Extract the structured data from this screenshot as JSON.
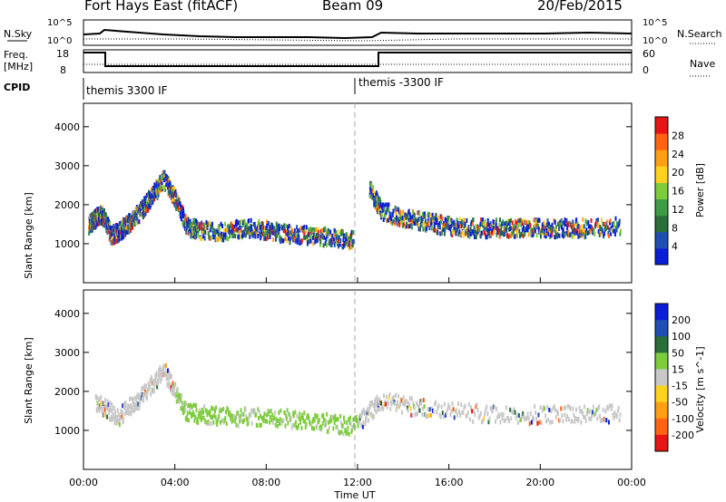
{
  "header": {
    "station": "Fort Hays East (fitACF)",
    "beam": "Beam 09",
    "date": "20/Feb/2015"
  },
  "aux_panels": {
    "nsky_label": "N.Sky",
    "nsky_ticks": [
      "10^5",
      "10^0"
    ],
    "nsearch_label": "N.Search",
    "nsearch_ticks": [
      "10^5",
      "10^0"
    ],
    "freq_label": "Freq.",
    "freq_unit": "[MHz]",
    "freq_ticks": [
      "18",
      "8"
    ],
    "nave_label": "Nave",
    "nave_ticks": [
      "60",
      "0"
    ],
    "cpid_label": "CPID",
    "cpid_segments": [
      {
        "label": "themis 3300 IF",
        "start": 0,
        "end": 12
      },
      {
        "label": "themis -3300 IF",
        "start": 12,
        "end": 24
      }
    ]
  },
  "chart_data": [
    {
      "type": "heatmap",
      "title": "",
      "xlabel": "Time UT",
      "ylabel": "Slant Range [km]",
      "x_ticks": [
        "00:00",
        "04:00",
        "08:00",
        "12:00",
        "16:00",
        "20:00",
        "00:00"
      ],
      "xlim": [
        0,
        24
      ],
      "ylim": [
        0,
        4600
      ],
      "y_ticks": [
        1000,
        2000,
        3000,
        4000
      ],
      "colorbar": {
        "label": "Power [dB]",
        "ticks": [
          4,
          8,
          12,
          16,
          20,
          24,
          28
        ],
        "range": [
          0,
          32
        ],
        "colors": [
          "#0a1ed8",
          "#1e50b4",
          "#2a6e3a",
          "#3c9c46",
          "#7ccc3c",
          "#ffd21e",
          "#ffa014",
          "#ff6414",
          "#e61414"
        ]
      },
      "series": [
        {
          "name": "",
          "points": [
            [
              0.2,
              1550
            ],
            [
              0.5,
              1700
            ],
            [
              0.8,
              1800
            ],
            [
              1.2,
              1250
            ],
            [
              1.6,
              1400
            ],
            [
              2.0,
              1600
            ],
            [
              2.5,
              1900
            ],
            [
              3.0,
              2300
            ],
            [
              3.5,
              2700
            ],
            [
              4.0,
              2200
            ],
            [
              4.5,
              1500
            ],
            [
              5.0,
              1400
            ],
            [
              6.0,
              1350
            ],
            [
              7.0,
              1450
            ],
            [
              8.0,
              1400
            ],
            [
              9.0,
              1300
            ],
            [
              10.0,
              1250
            ],
            [
              11.0,
              1200
            ],
            [
              11.8,
              1150
            ]
          ]
        },
        {
          "name": "",
          "points": [
            [
              12.5,
              2500
            ],
            [
              13.0,
              1900
            ],
            [
              14.0,
              1700
            ],
            [
              15.0,
              1600
            ],
            [
              16.0,
              1500
            ],
            [
              17.0,
              1450
            ],
            [
              18.0,
              1450
            ],
            [
              19.0,
              1450
            ],
            [
              20.0,
              1450
            ],
            [
              21.0,
              1450
            ],
            [
              22.0,
              1450
            ],
            [
              23.5,
              1500
            ]
          ]
        }
      ]
    },
    {
      "type": "heatmap",
      "title": "",
      "xlabel": "Time UT",
      "ylabel": "Slant Range [km]",
      "x_ticks": [
        "00:00",
        "04:00",
        "08:00",
        "12:00",
        "16:00",
        "20:00",
        "00:00"
      ],
      "xlim": [
        0,
        24
      ],
      "ylim": [
        0,
        4600
      ],
      "y_ticks": [
        1000,
        2000,
        3000,
        4000
      ],
      "colorbar": {
        "label": "Velocity [m s^-1]",
        "ticks": [
          "200",
          "100",
          "50",
          "15",
          "-15",
          "-50",
          "-100",
          "-200"
        ],
        "range": [
          -250,
          250
        ],
        "colors": [
          "#0a1ed8",
          "#1e50b4",
          "#2a6e3a",
          "#7ccc3c",
          "#c8c8c8",
          "#ffd21e",
          "#ffa014",
          "#ff6414",
          "#e61414"
        ]
      },
      "series": [
        {
          "name": "",
          "points": [
            [
              0.5,
              1800
            ],
            [
              1.5,
              1400
            ],
            [
              2.5,
              1900
            ],
            [
              3.5,
              2600
            ],
            [
              4.5,
              1500
            ],
            [
              6,
              1400
            ],
            [
              8,
              1400
            ],
            [
              10,
              1300
            ],
            [
              11.8,
              1150
            ],
            [
              13,
              1800
            ],
            [
              15,
              1600
            ],
            [
              18,
              1450
            ],
            [
              21,
              1450
            ],
            [
              23.5,
              1500
            ]
          ]
        }
      ]
    }
  ]
}
